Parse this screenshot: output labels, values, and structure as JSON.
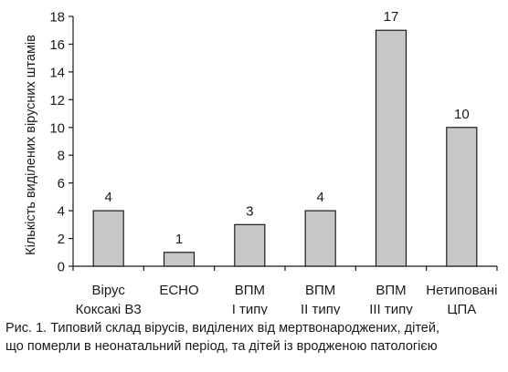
{
  "chart_data": {
    "type": "bar",
    "ylabel": "Кількість виділених вірусних штамів",
    "ylim": [
      0,
      18
    ],
    "yticks": [
      0,
      2,
      4,
      6,
      8,
      10,
      12,
      14,
      16,
      18
    ],
    "categories": [
      [
        "Вірус",
        "Коксакі В3"
      ],
      [
        "ECHO"
      ],
      [
        "ВПМ",
        "I типу"
      ],
      [
        "ВПМ",
        "II типу"
      ],
      [
        "ВПМ",
        "III типу"
      ],
      [
        "Нетиповані",
        "ЦПА"
      ]
    ],
    "values": [
      4,
      1,
      3,
      4,
      17,
      10
    ],
    "data_labels": [
      "4",
      "1",
      "3",
      "4",
      "17",
      "10"
    ],
    "grid": false,
    "bar_color": "#c8c8c8",
    "bar_edge_color": "#1a1a1a"
  },
  "caption": {
    "line1": "Рис. 1. Типовий склад вірусів, виділених від мертвонароджених, дітей,",
    "line2": "що померли в неонатальний період, та дітей із вродженою патологією"
  }
}
